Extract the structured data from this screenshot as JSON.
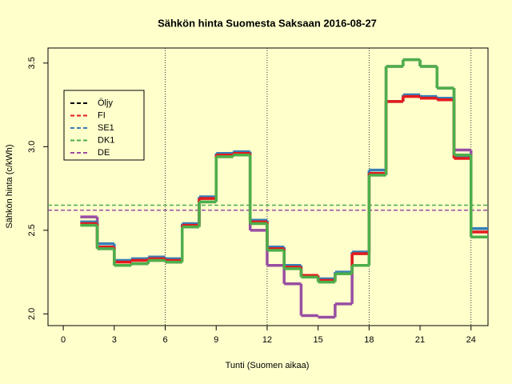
{
  "chart_data": {
    "type": "step",
    "title": "Sähkön hinta Suomesta Saksaan 2016-08-27",
    "x_label": "Tunti (Suomen aikaa)",
    "y_label": "Sähkön hinta (c/kWh)",
    "x": [
      1,
      2,
      3,
      4,
      5,
      6,
      7,
      8,
      9,
      10,
      11,
      12,
      13,
      14,
      15,
      16,
      17,
      18,
      19,
      20,
      21,
      22,
      23,
      24
    ],
    "xlim": [
      -0.9,
      25
    ],
    "xticks": [
      0,
      3,
      6,
      9,
      12,
      15,
      18,
      21,
      24
    ],
    "ylim": [
      1.93,
      3.59
    ],
    "yticks": [
      {
        "value": 2,
        "label": "2.0"
      },
      2.5,
      {
        "value": 3,
        "label": "3.0"
      },
      3.5
    ],
    "vlines": [
      6,
      12,
      18,
      24
    ],
    "series": [
      {
        "name": "Öljy",
        "color": "#000000"
      },
      {
        "name": "FI",
        "color": "#e41a1c",
        "values": [
          2.54,
          2.4,
          2.31,
          2.32,
          2.33,
          2.32,
          2.53,
          2.69,
          2.95,
          2.96,
          2.55,
          2.39,
          2.28,
          2.23,
          2.2,
          2.24,
          2.36,
          2.84,
          3.27,
          3.3,
          3.29,
          3.28,
          2.93,
          2.49
        ]
      },
      {
        "name": "SE1",
        "color": "#377eb8",
        "values": [
          2.55,
          2.42,
          2.32,
          2.33,
          2.34,
          2.33,
          2.54,
          2.7,
          2.96,
          2.97,
          2.56,
          2.4,
          2.29,
          2.23,
          2.21,
          2.25,
          2.37,
          2.86,
          3.27,
          3.31,
          3.3,
          3.29,
          2.94,
          2.51
        ]
      },
      {
        "name": "DK1",
        "color": "#4daf4a",
        "average": 2.65,
        "values": [
          2.53,
          2.39,
          2.29,
          2.3,
          2.32,
          2.31,
          2.52,
          2.67,
          2.94,
          2.95,
          2.54,
          2.38,
          2.27,
          2.22,
          2.19,
          2.24,
          2.29,
          2.83,
          3.48,
          3.52,
          3.48,
          3.35,
          2.95,
          2.46
        ]
      },
      {
        "name": "DE",
        "color": "#984ea3",
        "average": 2.62,
        "values": [
          2.58,
          2.39,
          2.29,
          2.3,
          2.32,
          2.31,
          2.52,
          2.67,
          2.94,
          2.95,
          2.5,
          2.29,
          2.18,
          1.99,
          1.98,
          2.06,
          2.29,
          2.83,
          3.48,
          3.52,
          3.48,
          3.35,
          2.98,
          2.46
        ]
      }
    ]
  }
}
